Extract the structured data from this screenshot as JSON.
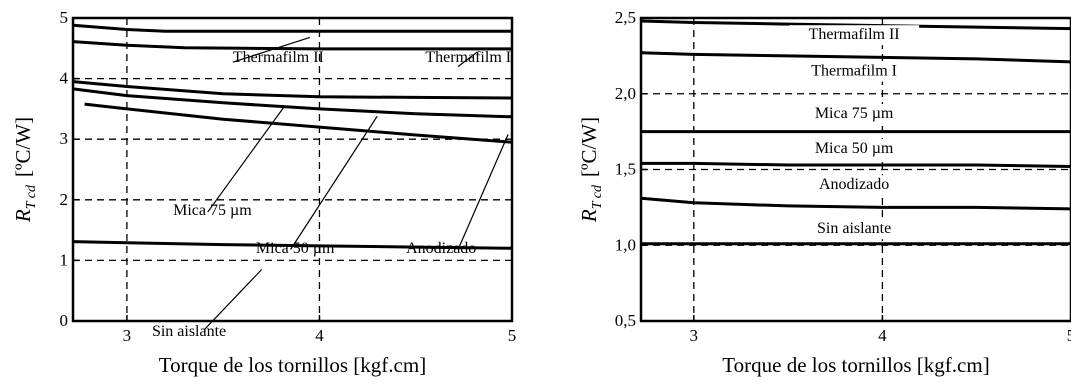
{
  "chart_data": [
    {
      "type": "line",
      "title": "",
      "xlabel": "Torque de los tornillos [kgf.cm]",
      "ylabel_main": "R",
      "ylabel_sub": "T cd",
      "ylabel_unit": "[ºC/W]",
      "xlim": [
        2.72,
        5.0
      ],
      "ylim": [
        0,
        5
      ],
      "xticks": [
        3,
        4,
        5
      ],
      "xtick_labels": [
        "3",
        "4",
        "5"
      ],
      "yticks": [
        0,
        1,
        2,
        3,
        4,
        5
      ],
      "ytick_labels": [
        "0",
        "1",
        "2",
        "3",
        "4",
        "5"
      ],
      "grid": "dashed",
      "grid_x": [
        3,
        4
      ],
      "grid_y": [
        1,
        2,
        3,
        4
      ],
      "series": [
        {
          "x": [
            2.72,
            3.0,
            3.2,
            3.5,
            4.0,
            4.5,
            5.0
          ],
          "y": [
            4.88,
            4.81,
            4.78,
            4.78,
            4.78,
            4.78,
            4.78
          ]
        },
        {
          "x": [
            2.72,
            3.0,
            3.3,
            3.6,
            4.0,
            4.5,
            5.0
          ],
          "y": [
            4.61,
            4.55,
            4.51,
            4.5,
            4.49,
            4.49,
            4.49
          ]
        },
        {
          "x": [
            2.72,
            3.0,
            3.5,
            4.0,
            4.5,
            5.0
          ],
          "y": [
            3.95,
            3.87,
            3.75,
            3.7,
            3.69,
            3.68
          ]
        },
        {
          "x": [
            2.72,
            3.0,
            3.5,
            4.0,
            4.5,
            5.0
          ],
          "y": [
            3.83,
            3.72,
            3.6,
            3.5,
            3.42,
            3.37
          ]
        },
        {
          "x": [
            2.78,
            3.0,
            3.5,
            4.0,
            4.5,
            5.0
          ],
          "y": [
            3.58,
            3.5,
            3.33,
            3.2,
            3.07,
            2.95
          ]
        },
        {
          "x": [
            2.72,
            3.0,
            3.5,
            4.0,
            4.5,
            5.0
          ],
          "y": [
            1.31,
            1.29,
            1.26,
            1.24,
            1.22,
            1.2
          ]
        }
      ],
      "annotations": [
        {
          "text": "Thermafilm II",
          "x": 3.55,
          "y": 4.27,
          "ax": 3.55,
          "ay": 4.27,
          "bx": 3.95,
          "by": 4.68
        },
        {
          "text": "Thermafilm I",
          "x": 4.55,
          "y": 4.27,
          "ax": 4.72,
          "ay": 4.2,
          "bx": 4.82,
          "by": 4.44
        },
        {
          "text": "Mica 75 µm",
          "x": 3.24,
          "y": 1.75,
          "ax": 3.42,
          "ay": 1.8,
          "bx": 3.82,
          "by": 3.55
        },
        {
          "text": "Mica 50 µm",
          "x": 3.67,
          "y": 1.12,
          "ax": 3.85,
          "ay": 1.18,
          "bx": 4.3,
          "by": 3.38
        },
        {
          "text": "Anodizado",
          "x": 4.45,
          "y": 1.12,
          "ax": 4.72,
          "ay": 1.18,
          "bx": 4.98,
          "by": 3.08
        },
        {
          "text": "Sin aislante",
          "x": 3.13,
          "y": -0.25,
          "ax": 3.4,
          "ay": -0.15,
          "bx": 3.7,
          "by": 0.85
        }
      ]
    },
    {
      "type": "line",
      "title": "",
      "xlabel": "Torque de los tornillos [kgf.cm]",
      "ylabel_main": "R",
      "ylabel_sub": "T cd",
      "ylabel_unit": "[ºC/W]",
      "xlim": [
        2.72,
        5.0
      ],
      "ylim": [
        0.5,
        2.5
      ],
      "xticks": [
        3,
        4,
        5
      ],
      "xtick_labels": [
        "3",
        "4",
        "5"
      ],
      "yticks": [
        0.5,
        1.0,
        1.5,
        2.0,
        2.5
      ],
      "ytick_labels": [
        "0,5",
        "1,0",
        "1,5",
        "2,0",
        "2,5"
      ],
      "grid": "dashed",
      "grid_x": [
        3,
        4
      ],
      "grid_y": [
        1.0,
        1.5,
        2.0
      ],
      "series": [
        {
          "x": [
            2.72,
            3.0,
            3.5,
            4.0,
            4.5,
            5.0
          ],
          "y": [
            2.48,
            2.47,
            2.46,
            2.45,
            2.44,
            2.43
          ]
        },
        {
          "x": [
            2.72,
            3.0,
            3.5,
            4.0,
            4.5,
            5.0
          ],
          "y": [
            2.27,
            2.26,
            2.25,
            2.24,
            2.23,
            2.21
          ]
        },
        {
          "x": [
            2.72,
            3.0,
            3.5,
            4.0,
            4.5,
            5.0
          ],
          "y": [
            1.75,
            1.75,
            1.75,
            1.75,
            1.75,
            1.75
          ]
        },
        {
          "x": [
            2.72,
            3.0,
            3.5,
            4.0,
            4.5,
            5.0
          ],
          "y": [
            1.54,
            1.54,
            1.53,
            1.53,
            1.53,
            1.52
          ]
        },
        {
          "x": [
            2.72,
            3.0,
            3.5,
            4.0,
            4.5,
            5.0
          ],
          "y": [
            1.31,
            1.28,
            1.26,
            1.25,
            1.25,
            1.24
          ]
        },
        {
          "x": [
            2.72,
            3.0,
            3.5,
            4.0,
            4.5,
            5.0
          ],
          "y": [
            1.01,
            1.01,
            1.01,
            1.01,
            1.01,
            1.01
          ]
        }
      ],
      "annotations": [
        {
          "text": "Thermafilm II",
          "x": 3.85,
          "y": 2.36
        },
        {
          "text": "Thermafilm I",
          "x": 3.85,
          "y": 2.12
        },
        {
          "text": "Mica 75 µm",
          "x": 3.85,
          "y": 1.84
        },
        {
          "text": "Mica 50 µm",
          "x": 3.85,
          "y": 1.61
        },
        {
          "text": "Anodizado",
          "x": 3.85,
          "y": 1.37
        },
        {
          "text": "Sin aislante",
          "x": 3.85,
          "y": 1.08
        }
      ]
    }
  ]
}
